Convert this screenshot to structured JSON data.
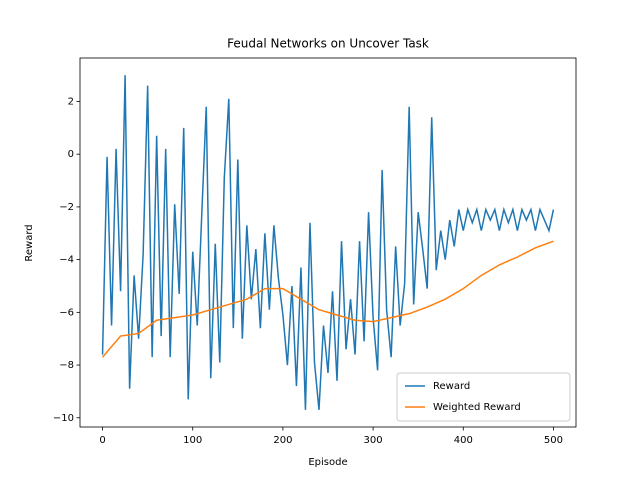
{
  "chart_data": {
    "type": "line",
    "title": "Feudal Networks on Uncover Task",
    "x_label": "Episode",
    "y_label": "Reward",
    "xlim": [
      -25,
      525
    ],
    "ylim": [
      -10.35,
      3.65
    ],
    "xticks": [
      0,
      100,
      200,
      300,
      400,
      500
    ],
    "yticks": [
      {
        "value": -10,
        "label": "−10"
      },
      {
        "value": -8,
        "label": "−8"
      },
      {
        "value": -6,
        "label": "−6"
      },
      {
        "value": -4,
        "label": "−4"
      },
      {
        "value": -2,
        "label": "−2"
      },
      0,
      2
    ],
    "grid": false,
    "legend": "lower right",
    "series": [
      {
        "name": "Reward",
        "color": "#1f77b4",
        "x": [
          0,
          5,
          10,
          15,
          20,
          25,
          30,
          35,
          40,
          45,
          50,
          55,
          60,
          65,
          70,
          75,
          80,
          85,
          90,
          95,
          100,
          105,
          110,
          115,
          120,
          125,
          130,
          135,
          140,
          145,
          150,
          155,
          160,
          165,
          170,
          175,
          180,
          185,
          190,
          195,
          200,
          205,
          210,
          215,
          220,
          225,
          230,
          235,
          240,
          245,
          250,
          255,
          260,
          265,
          270,
          275,
          280,
          285,
          290,
          295,
          300,
          305,
          310,
          315,
          320,
          325,
          330,
          335,
          340,
          345,
          350,
          355,
          360,
          365,
          370,
          375,
          380,
          385,
          390,
          395,
          400,
          405,
          410,
          415,
          420,
          425,
          430,
          435,
          440,
          445,
          450,
          455,
          460,
          465,
          470,
          475,
          480,
          485,
          490,
          495,
          500
        ],
        "values": [
          -7.6,
          -0.1,
          -6.5,
          0.2,
          -5.2,
          3.0,
          -8.9,
          -4.6,
          -7.0,
          -3.8,
          2.6,
          -7.7,
          0.7,
          -6.9,
          0.2,
          -7.7,
          -1.9,
          -5.3,
          1.0,
          -9.3,
          -3.7,
          -6.5,
          -2.3,
          1.8,
          -8.5,
          -3.4,
          -7.9,
          -0.9,
          2.1,
          -6.6,
          -0.2,
          -7.0,
          -2.7,
          -5.5,
          -3.6,
          -6.6,
          -3.0,
          -5.9,
          -2.7,
          -4.7,
          -6.1,
          -8.0,
          -5.0,
          -8.8,
          -4.3,
          -9.7,
          -2.6,
          -7.9,
          -9.7,
          -6.5,
          -8.3,
          -5.2,
          -8.6,
          -3.3,
          -7.4,
          -5.5,
          -7.6,
          -3.3,
          -7.1,
          -2.2,
          -6.2,
          -8.2,
          -0.6,
          -5.9,
          -7.7,
          -3.5,
          -6.5,
          -4.9,
          1.8,
          -5.7,
          -2.2,
          -3.6,
          -5.1,
          1.4,
          -4.4,
          -2.9,
          -4.0,
          -2.5,
          -3.5,
          -2.1,
          -2.9,
          -2.1,
          -2.6,
          -2.1,
          -2.9,
          -2.1,
          -2.5,
          -2.1,
          -2.9,
          -2.1,
          -2.6,
          -2.1,
          -2.9,
          -2.1,
          -2.5,
          -2.1,
          -2.9,
          -2.1,
          -2.5,
          -2.9,
          -2.1
        ]
      },
      {
        "name": "Weighted Reward",
        "color": "#ff7f0e",
        "x": [
          0,
          20,
          40,
          60,
          80,
          100,
          120,
          140,
          160,
          180,
          200,
          220,
          240,
          260,
          280,
          300,
          320,
          340,
          360,
          380,
          400,
          420,
          440,
          460,
          480,
          500
        ],
        "values": [
          -7.7,
          -6.9,
          -6.8,
          -6.3,
          -6.2,
          -6.1,
          -5.9,
          -5.7,
          -5.5,
          -5.1,
          -5.1,
          -5.5,
          -5.9,
          -6.1,
          -6.3,
          -6.35,
          -6.2,
          -6.05,
          -5.8,
          -5.5,
          -5.1,
          -4.6,
          -4.2,
          -3.9,
          -3.55,
          -3.3
        ]
      }
    ]
  }
}
